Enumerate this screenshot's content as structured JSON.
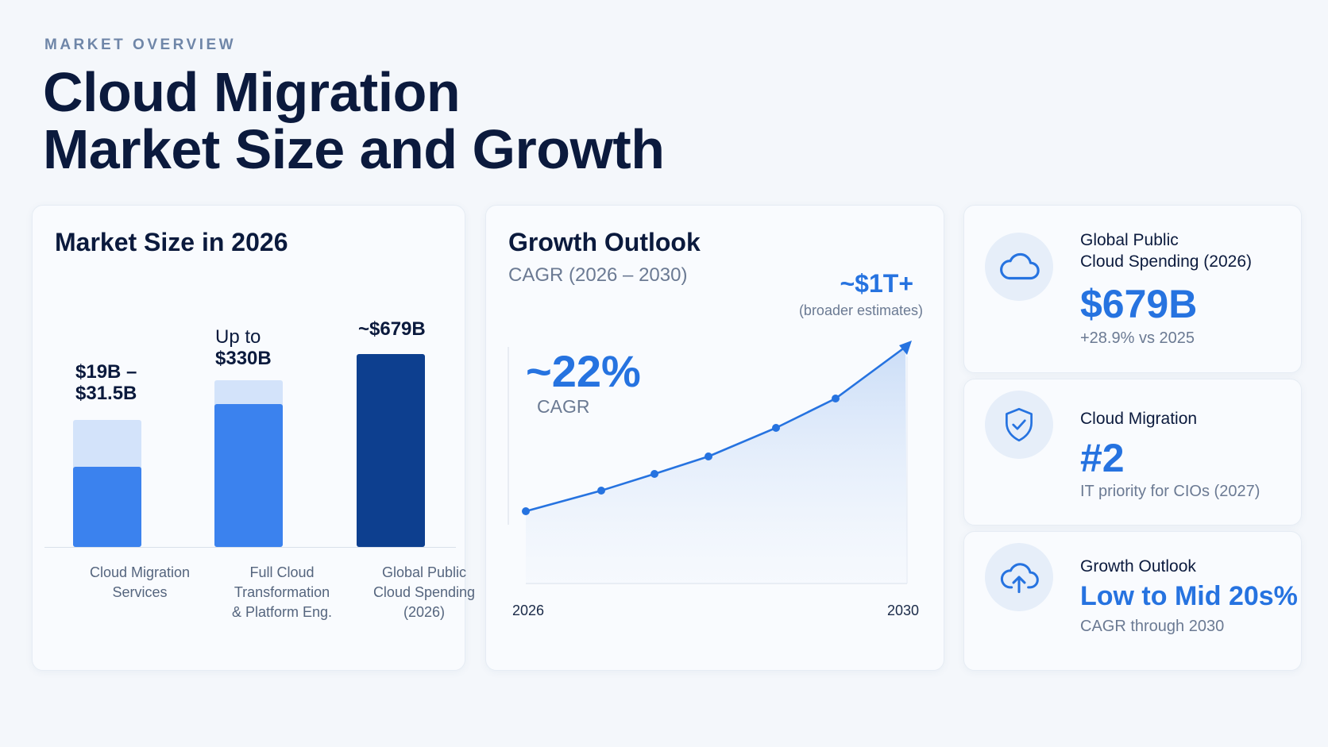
{
  "header": {
    "eyebrow": "MARKET OVERVIEW",
    "title_line1": "Cloud Migration",
    "title_line2": "Market Size and Growth"
  },
  "market_size": {
    "title": "Market Size in 2026",
    "bars": [
      {
        "value_label_1": "$19B –",
        "value_label_2": "$31.5B",
        "category_1": "Cloud Migration",
        "category_2": "Services",
        "category_3": ""
      },
      {
        "value_label_1": "Up to",
        "value_label_2": "$330B",
        "category_1": "Full Cloud",
        "category_2": "Transformation",
        "category_3": "& Platform Eng."
      },
      {
        "value_label_1": "~$679B",
        "value_label_2": "",
        "category_1": "Global Public",
        "category_2": "Cloud Spending",
        "category_3": "(2026)"
      }
    ]
  },
  "growth": {
    "title": "Growth Outlook",
    "subtitle": "CAGR (2026 – 2030)",
    "cagr_value": "~22%",
    "cagr_label": "CAGR",
    "end_value": "~$1T+",
    "end_note": "(broader estimates)",
    "x_start": "2026",
    "x_end": "2030"
  },
  "kpis": [
    {
      "label_1": "Global Public",
      "label_2": "Cloud Spending (2026)",
      "value": "$679B",
      "note": "+28.9% vs 2025",
      "icon": "cloud-icon"
    },
    {
      "label_1": "Cloud Migration",
      "label_2": "",
      "value": "#2",
      "note": "IT priority for CIOs (2027)",
      "icon": "shield-check-icon"
    },
    {
      "label_1": "Growth Outlook",
      "label_2": "",
      "value": "Low to Mid 20s%",
      "note": "CAGR through 2030",
      "icon": "cloud-upload-icon"
    }
  ],
  "colors": {
    "accent": "#2673e0",
    "bar_light": "#d3e3fa",
    "bar_mid": "#3b82ee",
    "bar_dark": "#0d3f8f"
  },
  "chart_data": [
    {
      "type": "bar",
      "title": "Market Size in 2026",
      "categories": [
        "Cloud Migration Services",
        "Full Cloud Transformation & Platform Eng.",
        "Global Public Cloud Spending (2026)"
      ],
      "series": [
        {
          "values": [
            19,
            330,
            679
          ]
        },
        {
          "values": [
            31.5,
            330,
            679
          ]
        }
      ],
      "units": "$B"
    },
    {
      "type": "line",
      "title": "Growth Outlook",
      "subtitle": "CAGR (2026 – 2030)",
      "x_labels": [
        "2026",
        "2030"
      ],
      "growth_rate": "~22%",
      "end_label": "~$1T+"
    }
  ]
}
